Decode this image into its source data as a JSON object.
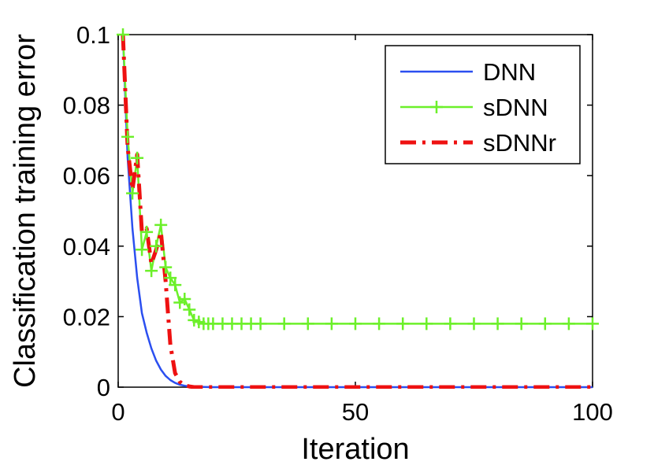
{
  "chart_data": {
    "type": "line",
    "title": "",
    "xlabel": "Iteration",
    "ylabel": "Classification training error",
    "xlim": [
      0,
      100
    ],
    "ylim": [
      0,
      0.1
    ],
    "xticks": [
      0,
      50,
      100
    ],
    "xtick_labels": [
      "0",
      "50",
      "100"
    ],
    "yticks": [
      0,
      0.02,
      0.04,
      0.06,
      0.08,
      0.1
    ],
    "ytick_labels": [
      "0",
      "0.02",
      "0.04",
      "0.06",
      "0.08",
      "0.1"
    ],
    "grid": false,
    "legend_position": "top-right",
    "series": [
      {
        "name": "DNN",
        "color": "#2b4ff0",
        "style": "solid",
        "x": [
          1,
          2,
          3,
          4,
          5,
          6,
          7,
          8,
          9,
          10,
          11,
          12,
          13,
          14,
          15,
          16,
          18,
          20,
          30,
          40,
          50,
          60,
          70,
          80,
          90,
          100
        ],
        "y": [
          0.1,
          0.065,
          0.045,
          0.031,
          0.021,
          0.0155,
          0.011,
          0.0075,
          0.005,
          0.0032,
          0.002,
          0.0012,
          0.0007,
          0.0004,
          0.0002,
          0.0001,
          5e-05,
          0,
          0,
          0,
          0,
          0,
          0,
          0,
          0,
          0
        ]
      },
      {
        "name": "sDNN",
        "color": "#6cf02a",
        "style": "solid-plus-markers",
        "x": [
          1,
          2,
          3,
          4,
          5,
          6,
          7,
          8,
          9,
          10,
          11,
          12,
          13,
          14,
          15,
          16,
          17,
          18,
          19,
          20,
          22,
          24,
          26,
          28,
          30,
          35,
          40,
          45,
          50,
          55,
          60,
          65,
          70,
          75,
          80,
          85,
          90,
          95,
          100
        ],
        "y": [
          0.1,
          0.071,
          0.055,
          0.065,
          0.039,
          0.044,
          0.033,
          0.04,
          0.046,
          0.034,
          0.031,
          0.029,
          0.024,
          0.025,
          0.022,
          0.019,
          0.0185,
          0.018,
          0.018,
          0.018,
          0.018,
          0.018,
          0.018,
          0.018,
          0.018,
          0.018,
          0.018,
          0.018,
          0.018,
          0.018,
          0.018,
          0.018,
          0.018,
          0.018,
          0.018,
          0.018,
          0.018,
          0.018,
          0.018
        ]
      },
      {
        "name": "sDNNr",
        "color": "#ee1111",
        "style": "dash-dot",
        "x": [
          1,
          2,
          3,
          4,
          5,
          6,
          7,
          8,
          9,
          10,
          11,
          12,
          13,
          14,
          15,
          16,
          18,
          20,
          30,
          40,
          50,
          60,
          70,
          80,
          90,
          100
        ],
        "y": [
          0.1,
          0.068,
          0.056,
          0.066,
          0.044,
          0.045,
          0.035,
          0.039,
          0.044,
          0.03,
          0.012,
          0.004,
          0.0015,
          0.0005,
          0.0002,
          0,
          0,
          0,
          0,
          0,
          0,
          0,
          0,
          0,
          0,
          0
        ]
      }
    ]
  }
}
